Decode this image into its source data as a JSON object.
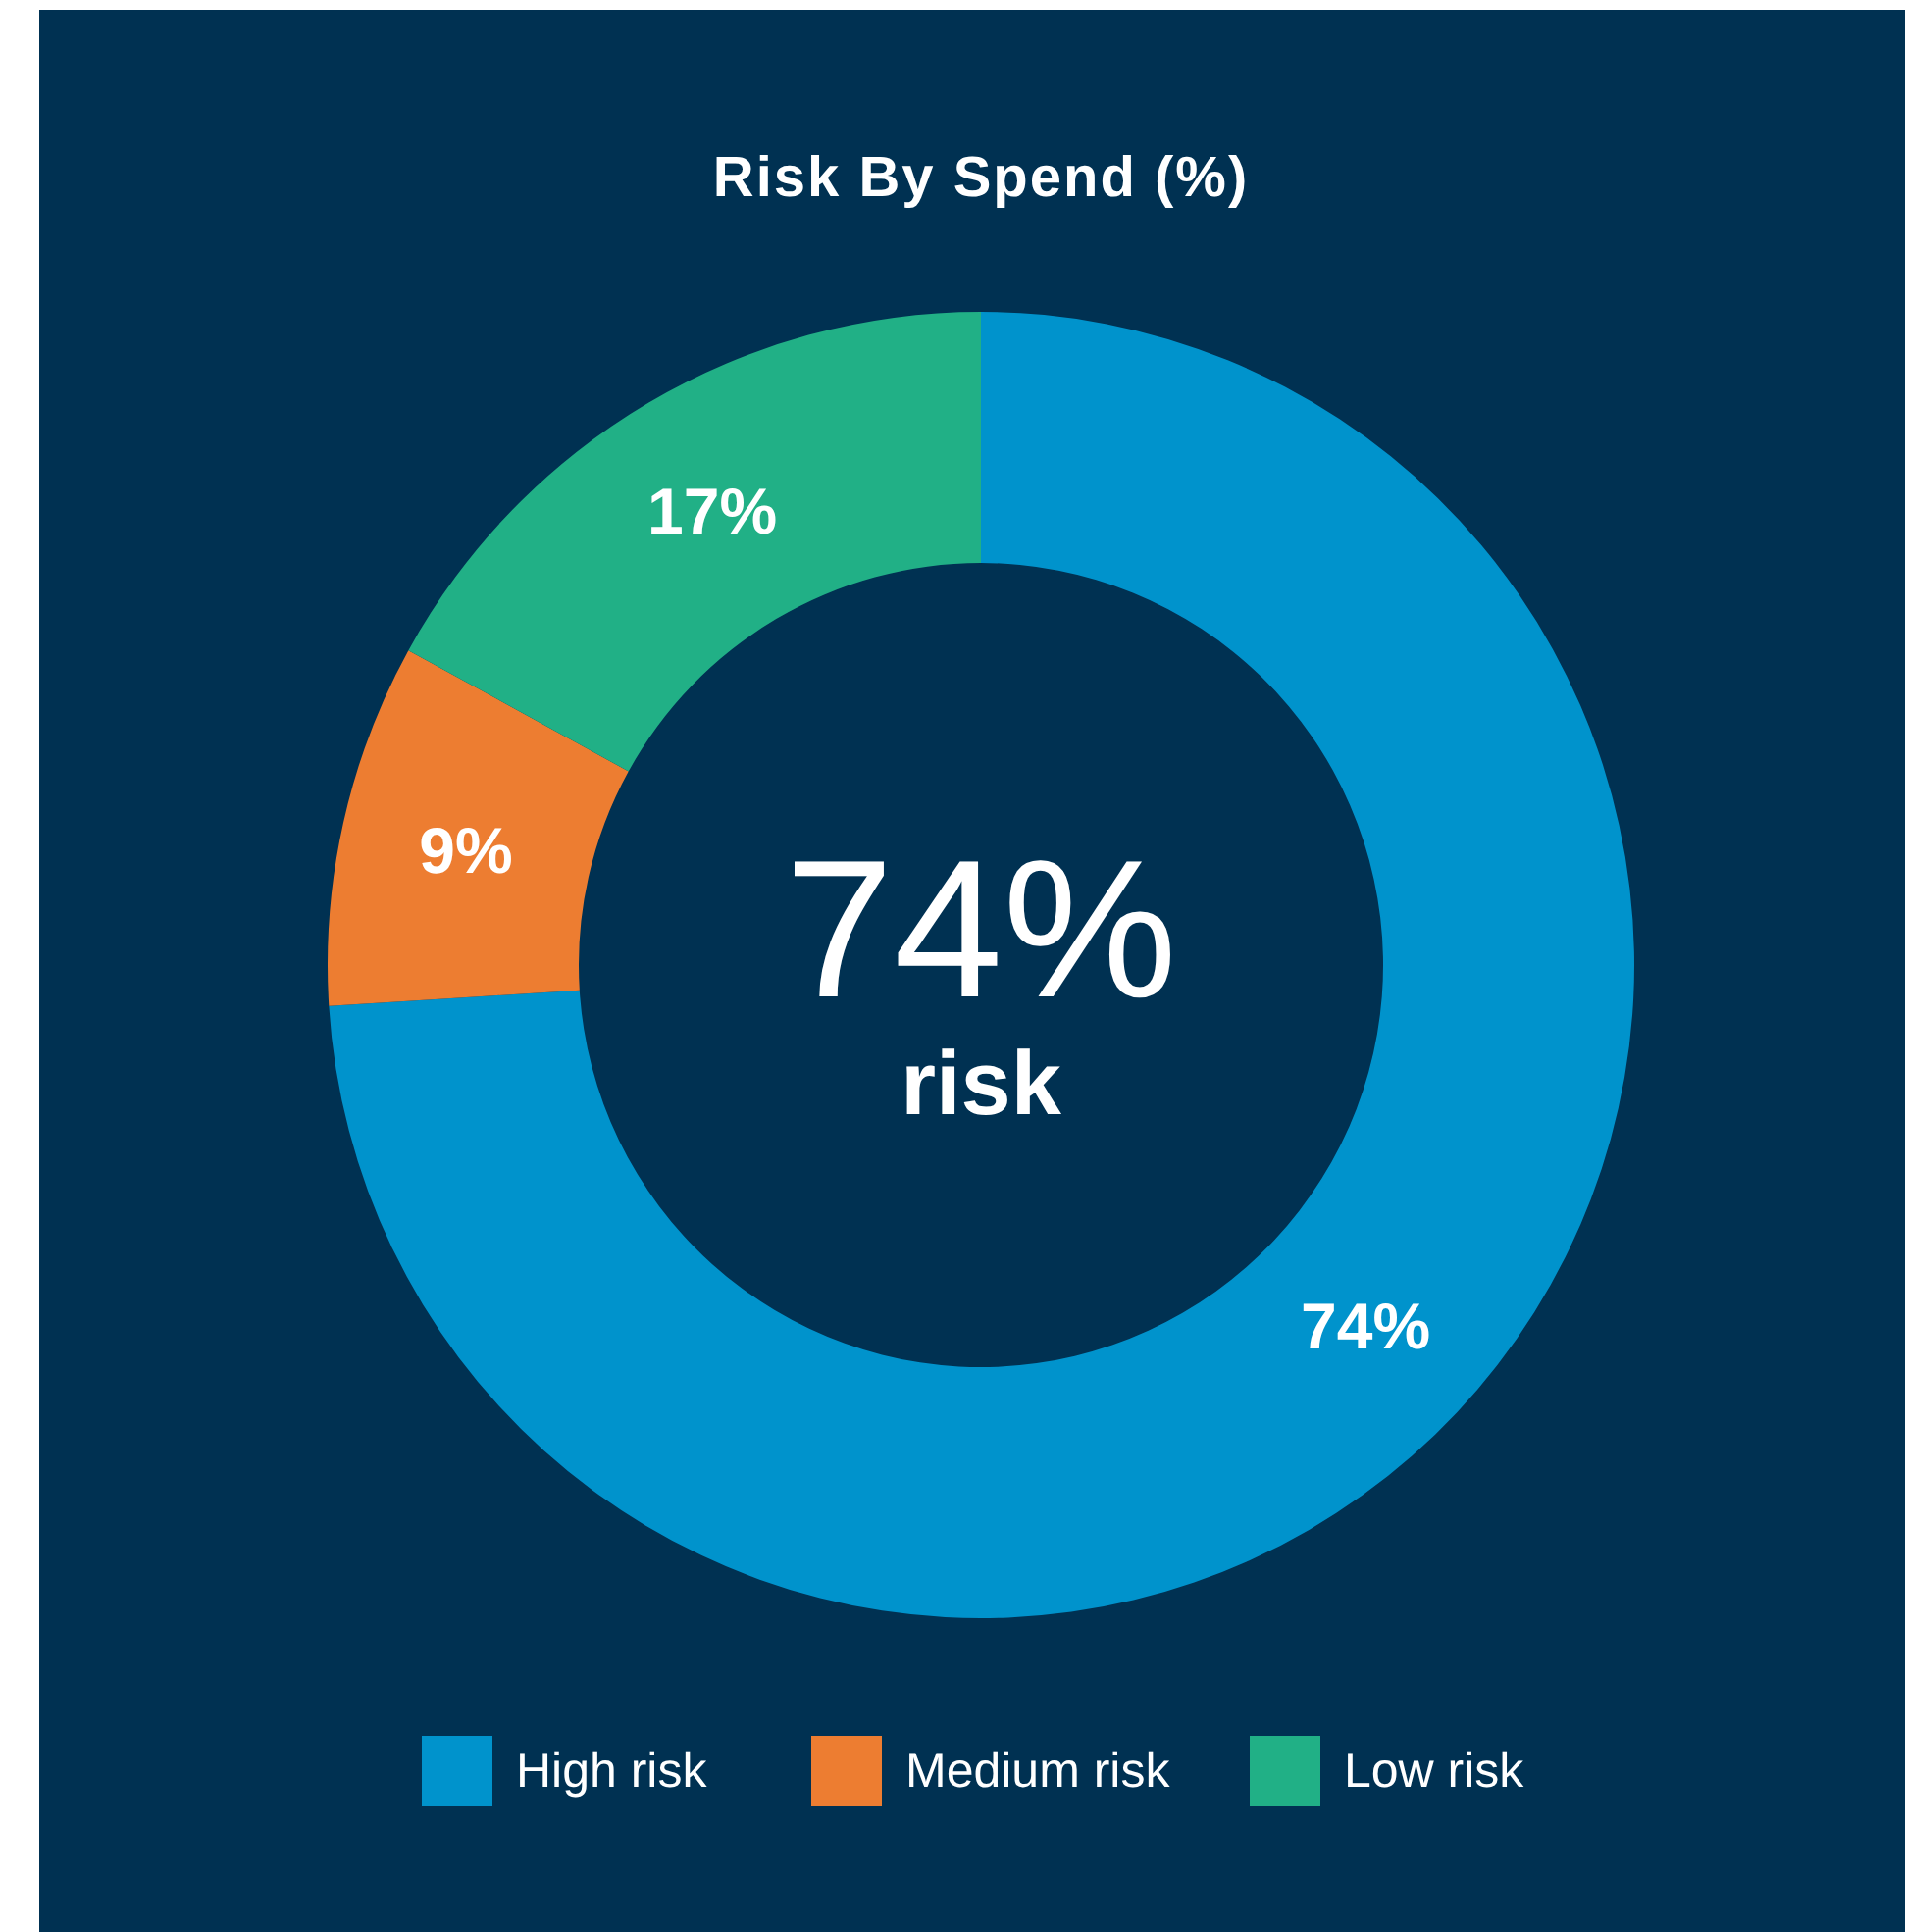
{
  "chart_data": {
    "type": "donut",
    "title": "Risk By Spend (%)",
    "categories": [
      "High risk",
      "Medium risk",
      "Low risk"
    ],
    "values": [
      74,
      9,
      17
    ],
    "colors": [
      "#0093cc",
      "#ed7d31",
      "#21b086"
    ],
    "value_labels": [
      "74%",
      "9%",
      "17%"
    ],
    "annotations": [
      "74%",
      "risk"
    ],
    "legend": "bottom"
  }
}
